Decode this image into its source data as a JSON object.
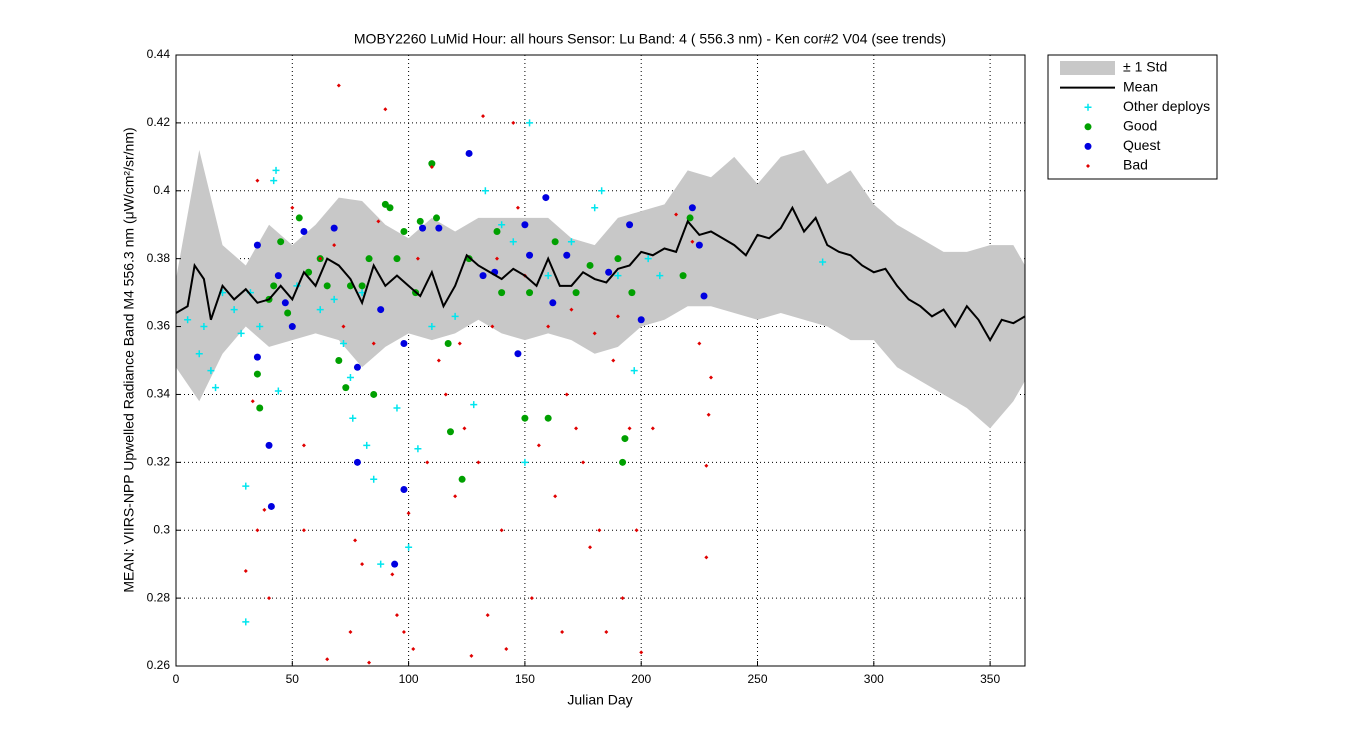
{
  "chart_data": {
    "type": "scatter",
    "title": "MOBY2260   LuMid  Hour: all hours  Sensor: Lu Band: 4 ( 556.3 nm)  - Ken cor#2 V04 (see trends)",
    "x_label": "Julian Day",
    "y_label": "MEAN: VIIRS-NPP Upwelled Radiance Band M4 556.3 nm (μW/cm²/sr/nm)",
    "xlim": [
      0,
      365
    ],
    "ylim": [
      0.26,
      0.44
    ],
    "xticks": [
      0,
      50,
      100,
      150,
      200,
      250,
      300,
      350
    ],
    "yticks": [
      0.26,
      0.28,
      0.3,
      0.32,
      0.34,
      0.36,
      0.38,
      0.4,
      0.42,
      0.44
    ],
    "grid": true,
    "legend": "outside-right",
    "series": [
      {
        "name": "± 1 Std",
        "style": "band",
        "color": "#c8c8c8",
        "x": [
          0,
          10,
          20,
          30,
          40,
          50,
          60,
          70,
          80,
          90,
          100,
          110,
          120,
          130,
          140,
          150,
          160,
          170,
          180,
          190,
          200,
          210,
          220,
          230,
          240,
          250,
          260,
          270,
          280,
          290,
          300,
          310,
          320,
          330,
          340,
          350,
          360,
          365
        ],
        "high": [
          0.374,
          0.412,
          0.384,
          0.378,
          0.39,
          0.384,
          0.39,
          0.398,
          0.397,
          0.39,
          0.386,
          0.392,
          0.388,
          0.392,
          0.392,
          0.392,
          0.392,
          0.386,
          0.384,
          0.392,
          0.394,
          0.396,
          0.406,
          0.404,
          0.41,
          0.402,
          0.41,
          0.412,
          0.402,
          0.406,
          0.396,
          0.39,
          0.386,
          0.382,
          0.382,
          0.384,
          0.384,
          0.378
        ],
        "low": [
          0.348,
          0.338,
          0.352,
          0.36,
          0.354,
          0.356,
          0.358,
          0.356,
          0.348,
          0.354,
          0.358,
          0.356,
          0.358,
          0.362,
          0.358,
          0.356,
          0.358,
          0.356,
          0.352,
          0.354,
          0.36,
          0.362,
          0.366,
          0.366,
          0.364,
          0.362,
          0.364,
          0.362,
          0.36,
          0.356,
          0.356,
          0.348,
          0.344,
          0.34,
          0.336,
          0.33,
          0.338,
          0.344
        ]
      },
      {
        "name": "Mean",
        "style": "line",
        "color": "#000000",
        "x": [
          0,
          5,
          8,
          12,
          15,
          20,
          25,
          30,
          35,
          40,
          45,
          50,
          55,
          60,
          65,
          70,
          75,
          80,
          85,
          90,
          95,
          100,
          105,
          110,
          115,
          120,
          125,
          130,
          135,
          140,
          145,
          150,
          155,
          160,
          165,
          170,
          175,
          180,
          185,
          190,
          195,
          200,
          205,
          210,
          215,
          220,
          225,
          230,
          235,
          240,
          245,
          250,
          255,
          260,
          265,
          270,
          275,
          280,
          285,
          290,
          295,
          300,
          305,
          310,
          315,
          320,
          325,
          330,
          335,
          340,
          345,
          350,
          355,
          360,
          365
        ],
        "values": [
          0.364,
          0.366,
          0.378,
          0.374,
          0.362,
          0.372,
          0.368,
          0.371,
          0.367,
          0.368,
          0.372,
          0.368,
          0.376,
          0.372,
          0.38,
          0.378,
          0.374,
          0.367,
          0.378,
          0.372,
          0.375,
          0.372,
          0.369,
          0.376,
          0.366,
          0.372,
          0.381,
          0.378,
          0.376,
          0.374,
          0.377,
          0.375,
          0.372,
          0.38,
          0.372,
          0.372,
          0.376,
          0.374,
          0.373,
          0.377,
          0.378,
          0.382,
          0.381,
          0.383,
          0.382,
          0.391,
          0.387,
          0.388,
          0.386,
          0.384,
          0.381,
          0.387,
          0.386,
          0.389,
          0.395,
          0.388,
          0.392,
          0.384,
          0.382,
          0.381,
          0.378,
          0.376,
          0.377,
          0.372,
          0.368,
          0.366,
          0.363,
          0.365,
          0.36,
          0.366,
          0.362,
          0.356,
          0.362,
          0.361,
          0.363
        ]
      },
      {
        "name": "Other deploys",
        "style": "plus",
        "color": "#00e5ee",
        "x": [
          5,
          10,
          12,
          15,
          17,
          20,
          25,
          28,
          30,
          30,
          32,
          36,
          42,
          43,
          44,
          52,
          62,
          68,
          72,
          75,
          76,
          80,
          82,
          85,
          88,
          95,
          100,
          104,
          110,
          120,
          128,
          133,
          140,
          145,
          152,
          150,
          160,
          170,
          180,
          183,
          190,
          197,
          203,
          208,
          278
        ],
        "values": [
          0.362,
          0.352,
          0.36,
          0.347,
          0.342,
          0.37,
          0.365,
          0.358,
          0.313,
          0.273,
          0.37,
          0.36,
          0.403,
          0.406,
          0.341,
          0.372,
          0.365,
          0.368,
          0.355,
          0.345,
          0.333,
          0.37,
          0.325,
          0.315,
          0.29,
          0.336,
          0.295,
          0.324,
          0.36,
          0.363,
          0.337,
          0.4,
          0.39,
          0.385,
          0.42,
          0.32,
          0.375,
          0.385,
          0.395,
          0.4,
          0.375,
          0.347,
          0.38,
          0.375,
          0.379
        ]
      },
      {
        "name": "Good",
        "style": "dot",
        "color": "#00a000",
        "x": [
          35,
          36,
          40,
          42,
          45,
          48,
          53,
          57,
          62,
          65,
          70,
          73,
          75,
          80,
          83,
          85,
          90,
          92,
          95,
          98,
          103,
          105,
          110,
          112,
          117,
          118,
          123,
          126,
          138,
          140,
          150,
          152,
          160,
          163,
          172,
          178,
          190,
          192,
          193,
          196,
          218,
          221
        ],
        "values": [
          0.346,
          0.336,
          0.368,
          0.372,
          0.385,
          0.364,
          0.392,
          0.376,
          0.38,
          0.372,
          0.35,
          0.342,
          0.372,
          0.372,
          0.38,
          0.34,
          0.396,
          0.395,
          0.38,
          0.388,
          0.37,
          0.391,
          0.408,
          0.392,
          0.355,
          0.329,
          0.315,
          0.38,
          0.388,
          0.37,
          0.333,
          0.37,
          0.333,
          0.385,
          0.37,
          0.378,
          0.38,
          0.32,
          0.327,
          0.37,
          0.375,
          0.392
        ]
      },
      {
        "name": "Quest",
        "style": "dot",
        "color": "#0000e0",
        "x": [
          35,
          35,
          40,
          41,
          44,
          47,
          50,
          55,
          68,
          78,
          78,
          88,
          94,
          98,
          98,
          106,
          113,
          126,
          132,
          137,
          147,
          150,
          152,
          159,
          162,
          168,
          186,
          195,
          200,
          222,
          225,
          227
        ],
        "values": [
          0.384,
          0.351,
          0.325,
          0.307,
          0.375,
          0.367,
          0.36,
          0.388,
          0.389,
          0.348,
          0.32,
          0.365,
          0.29,
          0.312,
          0.355,
          0.389,
          0.389,
          0.411,
          0.375,
          0.376,
          0.352,
          0.39,
          0.381,
          0.398,
          0.367,
          0.381,
          0.376,
          0.39,
          0.362,
          0.395,
          0.384,
          0.369
        ]
      },
      {
        "name": "Bad",
        "style": "diamond",
        "color": "#e00000",
        "x": [
          30,
          33,
          35,
          35,
          38,
          40,
          50,
          55,
          55,
          62,
          65,
          68,
          70,
          72,
          75,
          77,
          80,
          83,
          85,
          87,
          90,
          93,
          95,
          98,
          100,
          102,
          104,
          108,
          110,
          113,
          116,
          120,
          122,
          124,
          127,
          130,
          132,
          134,
          136,
          138,
          140,
          142,
          145,
          147,
          150,
          153,
          156,
          160,
          163,
          166,
          168,
          170,
          172,
          175,
          178,
          180,
          182,
          185,
          188,
          190,
          192,
          195,
          198,
          200,
          205,
          215,
          222,
          225,
          228,
          229,
          230,
          228
        ],
        "values": [
          0.288,
          0.338,
          0.3,
          0.403,
          0.306,
          0.28,
          0.395,
          0.325,
          0.3,
          0.38,
          0.262,
          0.384,
          0.431,
          0.36,
          0.27,
          0.297,
          0.29,
          0.261,
          0.355,
          0.391,
          0.424,
          0.287,
          0.275,
          0.27,
          0.305,
          0.265,
          0.38,
          0.32,
          0.407,
          0.35,
          0.34,
          0.31,
          0.355,
          0.33,
          0.263,
          0.32,
          0.422,
          0.275,
          0.36,
          0.38,
          0.3,
          0.265,
          0.42,
          0.395,
          0.375,
          0.28,
          0.325,
          0.36,
          0.31,
          0.27,
          0.34,
          0.365,
          0.33,
          0.32,
          0.295,
          0.358,
          0.3,
          0.27,
          0.35,
          0.363,
          0.28,
          0.33,
          0.3,
          0.264,
          0.33,
          0.393,
          0.385,
          0.355,
          0.319,
          0.334,
          0.345,
          0.292
        ]
      }
    ]
  }
}
